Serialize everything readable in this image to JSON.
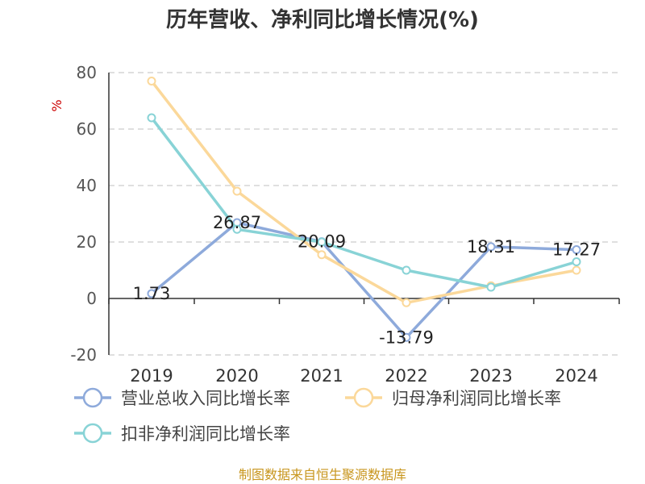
{
  "chart_data": {
    "type": "line",
    "title": "历年营收、净利同比增长情况(%)",
    "ylabel": "%",
    "categories": [
      "2019",
      "2020",
      "2021",
      "2022",
      "2023",
      "2024"
    ],
    "ylim": [
      -20,
      80
    ],
    "yticks": [
      80,
      60,
      40,
      20,
      0,
      -20
    ],
    "grid": true,
    "legend_position": "bottom",
    "series": [
      {
        "name": "营业总收入同比增长率",
        "color": "#8eaadb",
        "values": [
          1.73,
          26.87,
          20.09,
          -13.79,
          18.31,
          17.27
        ],
        "labels": [
          "1.73",
          "26.87",
          "20.09",
          "-13.79",
          "18.31",
          "17.27"
        ]
      },
      {
        "name": "归母净利润同比增长率",
        "color": "#fbd89a",
        "values": [
          77.0,
          38.0,
          15.5,
          -1.5,
          4.5,
          10.0
        ]
      },
      {
        "name": "扣非净利润同比增长率",
        "color": "#88d3d6",
        "values": [
          64.0,
          24.5,
          20.0,
          10.0,
          4.0,
          13.0
        ]
      }
    ]
  },
  "footer": {
    "source": "制图数据来自恒生聚源数据库"
  }
}
